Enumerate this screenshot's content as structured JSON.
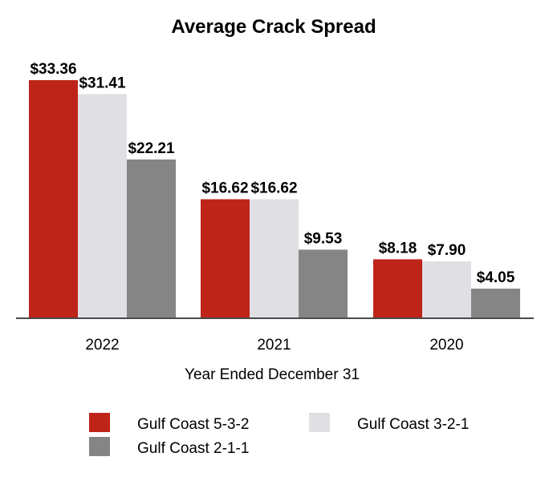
{
  "chart_data": {
    "type": "bar",
    "title": "Average Crack Spread",
    "xlabel": "Year Ended December 31",
    "ylabel": "",
    "categories": [
      "2022",
      "2021",
      "2020"
    ],
    "series": [
      {
        "name": "Gulf Coast 5-3-2",
        "color": "#bf2419",
        "values": [
          33.36,
          16.62,
          8.18
        ],
        "labels": [
          "$33.36",
          "$16.62",
          "$8.18"
        ]
      },
      {
        "name": "Gulf Coast 3-2-1",
        "color": "#e0e0e4",
        "values": [
          31.41,
          16.62,
          7.9
        ],
        "labels": [
          "$31.41",
          "$16.62",
          "$7.90"
        ]
      },
      {
        "name": "Gulf Coast 2-1-1",
        "color": "#858585",
        "values": [
          22.21,
          9.53,
          4.05
        ],
        "labels": [
          "$22.21",
          "$9.53",
          "$4.05"
        ]
      }
    ],
    "ylim": [
      0,
      33.36
    ],
    "grid": false,
    "legend": "bottom"
  }
}
